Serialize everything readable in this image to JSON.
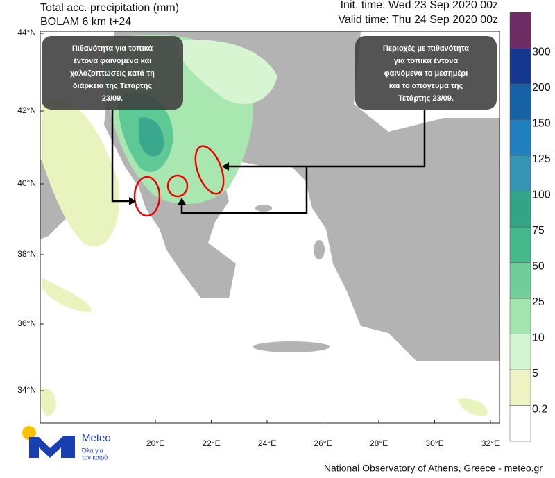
{
  "header": {
    "title_lines": [
      "Total acc. precipitation (mm)",
      "BOLAM 6 km t+24"
    ],
    "init_time": "Init. time: Wed 23 Sep 2020 00z",
    "valid_time": "Valid time: Thu 24 Sep 2020 00z"
  },
  "map": {
    "lat_labels": [
      "44°N",
      "42°N",
      "40°N",
      "38°N",
      "36°N",
      "34°N"
    ],
    "lon_labels": [
      "20°E",
      "22°E",
      "24°E",
      "26°E",
      "28°E",
      "30°E",
      "32°E"
    ]
  },
  "colorbar": {
    "levels": [
      0.2,
      5,
      10,
      25,
      50,
      75,
      100,
      125,
      150,
      200,
      300
    ]
  },
  "annotations": [
    {
      "lines": [
        "Πιθανότητα για τοπικά",
        "έντονα φαινόμενα και",
        "χαλαζοπτώσεις κατά τη",
        "διάρκεια της Τετάρτης",
        "23/09."
      ]
    },
    {
      "lines": [
        "Περιοχές με πιθανότητα",
        "για τοπικά έντονα",
        "φαινόμενα  το μεσημέρι",
        "και το απόγευμα της",
        "Τετάρτης 23/09."
      ]
    }
  ],
  "logo": {
    "name": "Meteo",
    "tagline": [
      "Όλα για",
      "τον καιρό"
    ]
  },
  "footer": "National Observatory of Athens, Greece - meteo.gr"
}
